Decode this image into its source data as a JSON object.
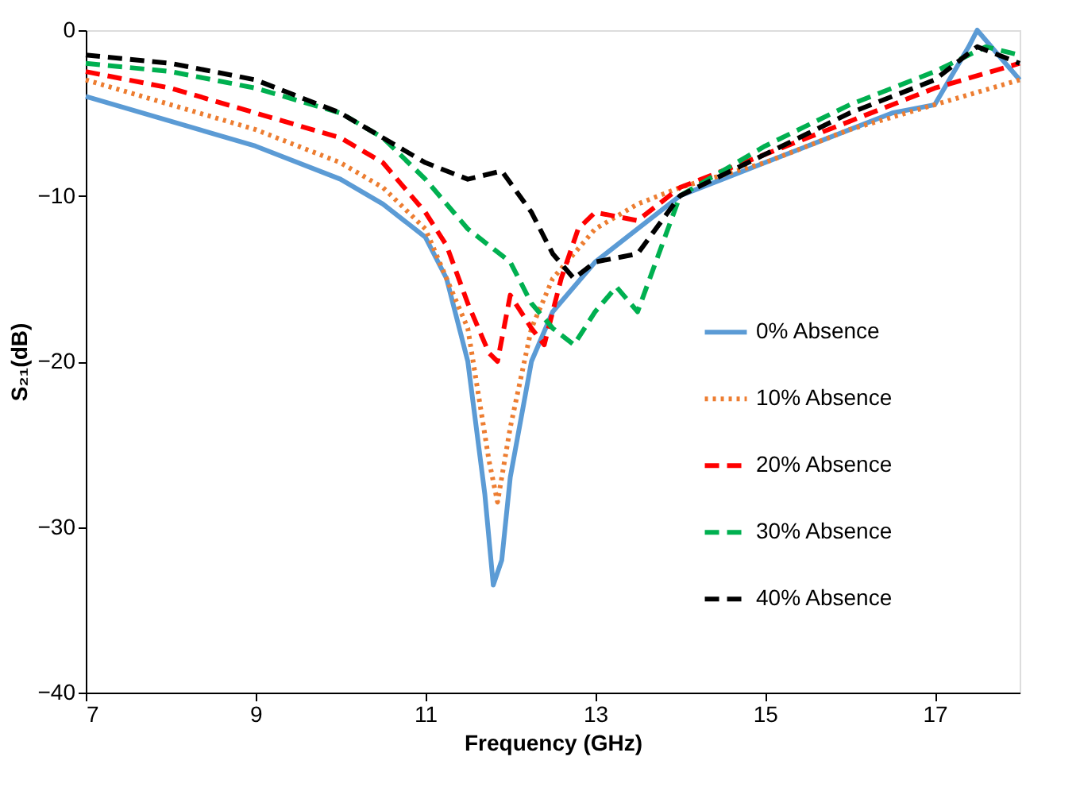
{
  "chart_data": {
    "type": "line",
    "xlabel": "Frequency (GHz)",
    "ylabel": "S₂₁(dB)",
    "xlim": [
      7,
      18
    ],
    "xticks": [
      7,
      9,
      11,
      13,
      15,
      17
    ],
    "ylim": [
      -40,
      0
    ],
    "yticks": [
      -40,
      -30,
      -20,
      -10,
      0
    ],
    "grid": false,
    "legend": "right",
    "marker": "none",
    "series": [
      {
        "name": "0% Absence",
        "color": "#5b9bd5",
        "line_style": "solid",
        "x": [
          7,
          8,
          9,
          10,
          10.5,
          11,
          11.25,
          11.5,
          11.7,
          11.8,
          11.9,
          12,
          12.25,
          12.5,
          13,
          13.5,
          14,
          14.5,
          15,
          15.5,
          16,
          16.5,
          17,
          17.4,
          17.5,
          18
        ],
        "values": [
          -4,
          -5.5,
          -7,
          -9,
          -10.5,
          -12.5,
          -15,
          -20,
          -28,
          -33.5,
          -32,
          -27,
          -20,
          -17,
          -14,
          -12,
          -10,
          -9,
          -8,
          -7,
          -6,
          -5,
          -4.5,
          -1,
          0,
          -3
        ]
      },
      {
        "name": "10% Absence",
        "color": "#ed7d31",
        "line_style": "dotted",
        "x": [
          7,
          8,
          9,
          10,
          10.5,
          11,
          11.5,
          11.75,
          11.85,
          12,
          12.25,
          12.5,
          13,
          13.5,
          14,
          15,
          16,
          17,
          18
        ],
        "values": [
          -3,
          -4.5,
          -6,
          -8,
          -9.5,
          -12,
          -18,
          -26,
          -28.5,
          -24,
          -18,
          -15,
          -12,
          -10.5,
          -9.5,
          -8,
          -6,
          -4.5,
          -3
        ]
      },
      {
        "name": "20% Absence",
        "color": "#ff0000",
        "line_style": "dashed",
        "x": [
          7,
          8,
          9,
          10,
          10.5,
          11,
          11.25,
          11.5,
          11.75,
          11.85,
          12,
          12.25,
          12.4,
          12.6,
          12.8,
          13,
          13.5,
          14,
          15,
          16,
          17,
          18
        ],
        "values": [
          -2.5,
          -3.5,
          -5,
          -6.5,
          -8,
          -11,
          -13,
          -16.5,
          -19.5,
          -20,
          -16,
          -18,
          -19,
          -15,
          -12,
          -11,
          -11.5,
          -9.5,
          -7.5,
          -5.5,
          -3.5,
          -2
        ]
      },
      {
        "name": "30% Absence",
        "color": "#00b050",
        "line_style": "dashed",
        "x": [
          7,
          8,
          9,
          10,
          10.5,
          11,
          11.5,
          12,
          12.25,
          12.5,
          12.75,
          13,
          13.25,
          13.5,
          14,
          15,
          16,
          17,
          17.6,
          18
        ],
        "values": [
          -2,
          -2.5,
          -3.5,
          -5,
          -6.5,
          -9,
          -12,
          -14,
          -16.5,
          -18,
          -19,
          -17,
          -15.5,
          -17,
          -10,
          -7,
          -4.5,
          -2.5,
          -1,
          -1.5
        ]
      },
      {
        "name": "40% Absence",
        "color": "#000000",
        "line_style": "dashed",
        "x": [
          7,
          8,
          9,
          10,
          10.5,
          11,
          11.5,
          11.9,
          12.25,
          12.5,
          12.75,
          13,
          13.5,
          14,
          15,
          16,
          17,
          17.5,
          18
        ],
        "values": [
          -1.5,
          -2,
          -3,
          -5,
          -6.5,
          -8,
          -9,
          -8.5,
          -11,
          -13.5,
          -15,
          -14,
          -13.5,
          -10,
          -7.5,
          -5,
          -3,
          -1,
          -2
        ]
      }
    ]
  }
}
